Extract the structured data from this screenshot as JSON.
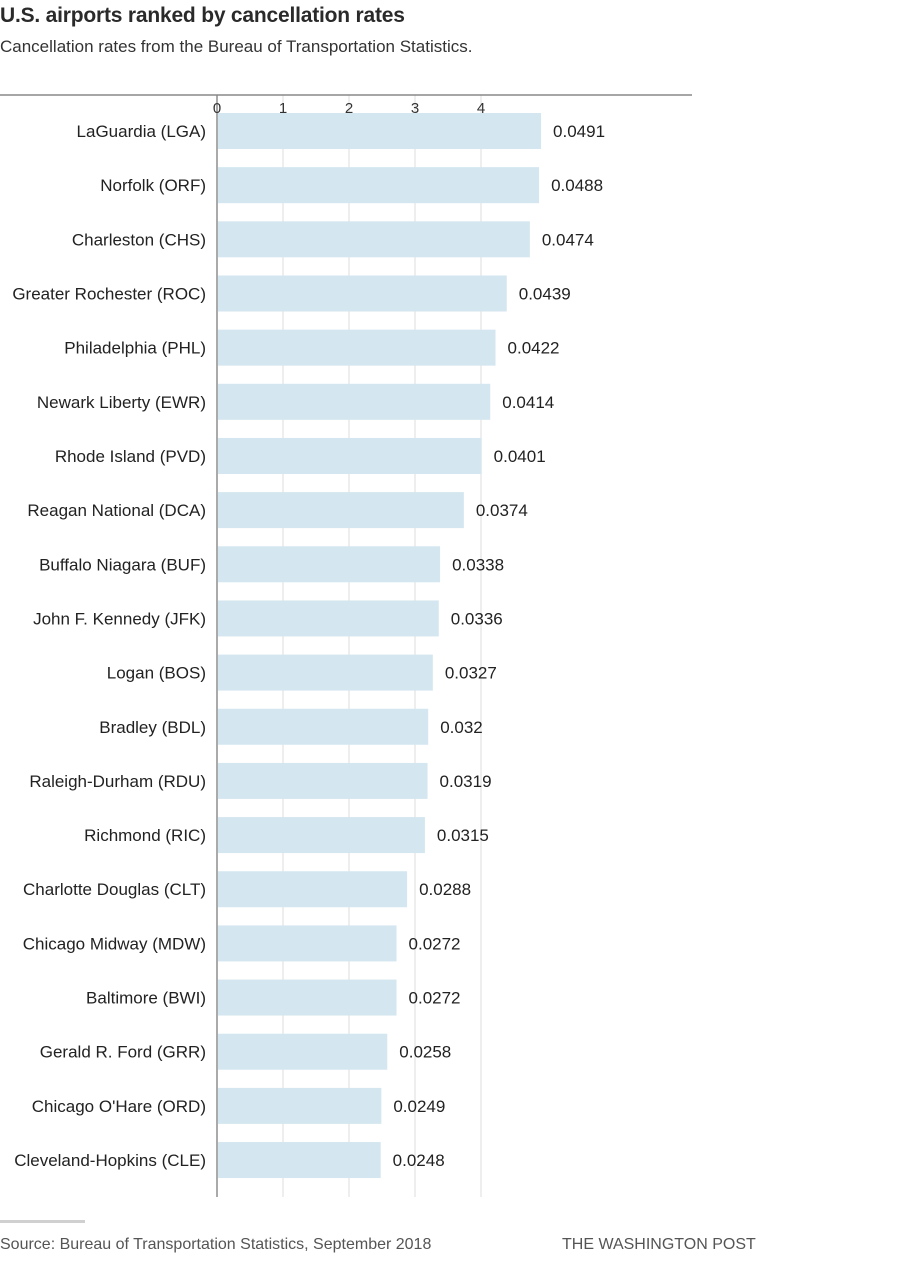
{
  "chart_data": {
    "type": "bar",
    "orientation": "horizontal",
    "title": "U.S. airports ranked by cancellation rates",
    "subtitle": "Cancellation rates from the Bureau of Transportation Statistics.",
    "xlim": [
      0,
      5
    ],
    "xticks": [
      0,
      1,
      2,
      3,
      4
    ],
    "grid": true,
    "bar_color": "#d4e6ef",
    "categories": [
      "LaGuardia (LGA)",
      "Norfolk (ORF)",
      "Charleston (CHS)",
      "Greater Rochester (ROC)",
      "Philadelphia (PHL)",
      "Newark Liberty (EWR)",
      "Rhode Island (PVD)",
      "Reagan National (DCA)",
      "Buffalo Niagara (BUF)",
      "John F. Kennedy (JFK)",
      "Logan (BOS)",
      "Bradley (BDL)",
      "Raleigh-Durham (RDU)",
      "Richmond (RIC)",
      "Charlotte Douglas (CLT)",
      "Chicago Midway (MDW)",
      "Baltimore (BWI)",
      "Gerald R. Ford (GRR)",
      "Chicago O'Hare (ORD)",
      "Cleveland-Hopkins (CLE)"
    ],
    "values": [
      0.0491,
      0.0488,
      0.0474,
      0.0439,
      0.0422,
      0.0414,
      0.0401,
      0.0374,
      0.0338,
      0.0336,
      0.0327,
      0.032,
      0.0319,
      0.0315,
      0.0288,
      0.0272,
      0.0272,
      0.0258,
      0.0249,
      0.0248
    ],
    "value_labels": [
      "0.0491",
      "0.0488",
      "0.0474",
      "0.0439",
      "0.0422",
      "0.0414",
      "0.0401",
      "0.0374",
      "0.0338",
      "0.0336",
      "0.0327",
      "0.032",
      "0.0319",
      "0.0315",
      "0.0288",
      "0.0272",
      "0.0272",
      "0.0258",
      "0.0249",
      "0.0248"
    ]
  },
  "footer": {
    "source": "Source: Bureau of Transportation Statistics, September 2018",
    "credit": "THE WASHINGTON POST"
  }
}
